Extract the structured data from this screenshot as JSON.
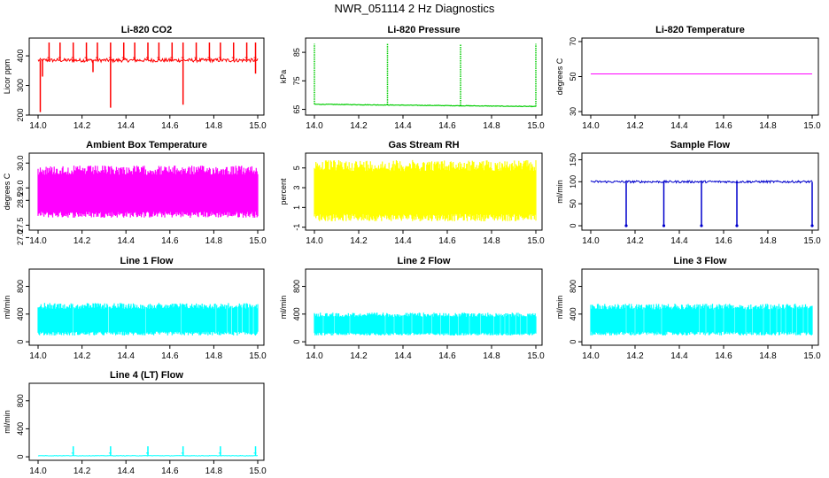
{
  "page": {
    "title": "NWR_051114  2 Hz Diagnostics"
  },
  "chart_data": [
    {
      "type": "line",
      "title": "Li-820 CO2",
      "ylabel": "Licor ppm",
      "color": "#ff0000",
      "xlim": [
        14.0,
        15.0
      ],
      "ylim": [
        200,
        460
      ],
      "xticks": [
        "14.0",
        "14.2",
        "14.4",
        "14.6",
        "14.8",
        "15.0"
      ],
      "yticks": [
        200,
        300,
        400
      ],
      "series": [
        {
          "name": "CO2",
          "style": "noisy",
          "baseline": 385,
          "noise": 6,
          "spikes_up": [
            14.05,
            14.1,
            14.16,
            14.22,
            14.27,
            14.33,
            14.39,
            14.44,
            14.5,
            14.55,
            14.61,
            14.66,
            14.72,
            14.78,
            14.83,
            14.89,
            14.95,
            14.99
          ],
          "spike_up_value": 445,
          "spikes_down": [
            [
              14.01,
              210
            ],
            [
              14.33,
              225
            ],
            [
              14.66,
              235
            ],
            [
              14.02,
              330
            ],
            [
              14.25,
              345
            ],
            [
              14.99,
              340
            ]
          ]
        }
      ]
    },
    {
      "type": "line",
      "title": "Li-820 Pressure",
      "ylabel": "kPa",
      "color": "#00cc00",
      "xlim": [
        14.0,
        15.0
      ],
      "ylim": [
        63,
        90
      ],
      "xticks": [
        "14.0",
        "14.2",
        "14.4",
        "14.6",
        "14.8",
        "15.0"
      ],
      "yticks": [
        65,
        75,
        85
      ],
      "series": [
        {
          "name": "Pressure",
          "style": "step",
          "baseline": 66.8,
          "end_value": 66.0,
          "noise": 0.2,
          "spikes_up": [
            14.0,
            14.33,
            14.66,
            15.0
          ],
          "spike_up_value": 88
        }
      ]
    },
    {
      "type": "line",
      "title": "Li-820 Temperature",
      "ylabel": "degrees C",
      "color": "#ff00ff",
      "xlim": [
        14.0,
        15.0
      ],
      "ylim": [
        28,
        72
      ],
      "xticks": [
        "14.0",
        "14.2",
        "14.4",
        "14.6",
        "14.8",
        "15.0"
      ],
      "yticks": [
        30,
        50,
        70
      ],
      "series": [
        {
          "name": "Temperature",
          "style": "flat",
          "baseline": 51.5
        }
      ]
    },
    {
      "type": "area",
      "title": "Ambient Box Temperature",
      "ylabel": "degrees C",
      "color": "#ff00ff",
      "xlim": [
        14.0,
        15.0
      ],
      "ylim": [
        27.3,
        30.4
      ],
      "xticks": [
        "14.0",
        "14.2",
        "14.4",
        "14.6",
        "14.8",
        "15.0"
      ],
      "yticks": [
        "30.0",
        "29.0",
        "28.5",
        "27.5",
        "27.0"
      ],
      "series": [
        {
          "name": "Ambient",
          "style": "band",
          "low": 27.8,
          "high": 29.9
        }
      ]
    },
    {
      "type": "area",
      "title": "Gas Stream RH",
      "ylabel": "percent",
      "color": "#ffff00",
      "xlim": [
        14.0,
        15.0
      ],
      "ylim": [
        -1.3,
        6.5
      ],
      "xticks": [
        "14.0",
        "14.2",
        "14.4",
        "14.6",
        "14.8",
        "15.0"
      ],
      "yticks": [
        -1,
        1,
        3,
        5
      ],
      "series": [
        {
          "name": "RH",
          "style": "band",
          "low": -0.4,
          "high": 5.8
        }
      ]
    },
    {
      "type": "line",
      "title": "Sample Flow",
      "ylabel": "ml/min",
      "color": "#0000cc",
      "xlim": [
        14.0,
        15.0
      ],
      "ylim": [
        -10,
        165
      ],
      "xticks": [
        "14.0",
        "14.2",
        "14.4",
        "14.6",
        "14.8",
        "15.0"
      ],
      "yticks": [
        0,
        50,
        100,
        150
      ],
      "series": [
        {
          "name": "Sample",
          "style": "noisy",
          "baseline": 100,
          "noise": 2.5,
          "spikes_up": [],
          "spike_up_value": 0,
          "spikes_down": [
            [
              14.16,
              0
            ],
            [
              14.33,
              0
            ],
            [
              14.5,
              0
            ],
            [
              14.66,
              0
            ],
            [
              15.0,
              0
            ]
          ]
        }
      ]
    },
    {
      "type": "area",
      "title": "Line 1 Flow",
      "ylabel": "ml/min",
      "color": "#00ffff",
      "xlim": [
        14.0,
        15.0
      ],
      "ylim": [
        -50,
        1050
      ],
      "xticks": [
        "14.0",
        "14.2",
        "14.4",
        "14.6",
        "14.8",
        "15.0"
      ],
      "yticks": [
        0,
        400,
        800
      ],
      "series": [
        {
          "name": "Line 1",
          "style": "band",
          "low": 90,
          "high": 560,
          "gaps": [
            14.16,
            14.32,
            14.49,
            14.65,
            14.81,
            14.86,
            14.88,
            14.91,
            14.93,
            14.96,
            14.98
          ]
        }
      ]
    },
    {
      "type": "area",
      "title": "Line 2 Flow",
      "ylabel": "ml/min",
      "color": "#00ffff",
      "xlim": [
        14.0,
        15.0
      ],
      "ylim": [
        -50,
        1050
      ],
      "xticks": [
        "14.0",
        "14.2",
        "14.4",
        "14.6",
        "14.8",
        "15.0"
      ],
      "yticks": [
        0,
        400,
        800
      ],
      "series": [
        {
          "name": "Line 2",
          "style": "band",
          "low": 90,
          "high": 420,
          "gaps": [
            14.04,
            14.09,
            14.16,
            14.32,
            14.36,
            14.4,
            14.44,
            14.49,
            14.53,
            14.57,
            14.61,
            14.65,
            14.7,
            14.75,
            14.81,
            14.84,
            14.86,
            14.88,
            14.91,
            14.93,
            14.96
          ]
        }
      ]
    },
    {
      "type": "area",
      "title": "Line 3 Flow",
      "ylabel": "ml/min",
      "color": "#00ffff",
      "xlim": [
        14.0,
        15.0
      ],
      "ylim": [
        -50,
        1050
      ],
      "xticks": [
        "14.0",
        "14.2",
        "14.4",
        "14.6",
        "14.8",
        "15.0"
      ],
      "yticks": [
        0,
        400,
        800
      ],
      "series": [
        {
          "name": "Line 3",
          "style": "band",
          "low": 90,
          "high": 550,
          "gaps": [
            14.16,
            14.2,
            14.24,
            14.32,
            14.49,
            14.52,
            14.56,
            14.6,
            14.65,
            14.7,
            14.73,
            14.78,
            14.81,
            14.84,
            14.86,
            14.88,
            14.91,
            14.93,
            14.96,
            14.98
          ]
        }
      ]
    },
    {
      "type": "line",
      "title": "Line 4 (LT) Flow",
      "ylabel": "ml/min",
      "color": "#00ffff",
      "xlim": [
        14.0,
        15.0
      ],
      "ylim": [
        -50,
        1050
      ],
      "xticks": [
        "14.0",
        "14.2",
        "14.4",
        "14.6",
        "14.8",
        "15.0"
      ],
      "yticks": [
        0,
        400,
        800
      ],
      "series": [
        {
          "name": "Line 4",
          "style": "noisy",
          "baseline": 15,
          "noise": 3,
          "spikes_up": [
            14.16,
            14.33,
            14.5,
            14.66,
            14.83,
            14.99
          ],
          "spike_up_value": 150,
          "spikes_down": []
        }
      ]
    }
  ]
}
